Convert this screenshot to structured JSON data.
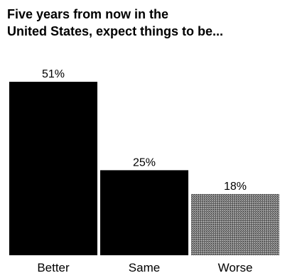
{
  "chart_data": {
    "type": "bar",
    "title_lines": [
      "Five years from now in the",
      "United States, expect things to be..."
    ],
    "categories": [
      "Better",
      "Same",
      "Worse"
    ],
    "values": [
      51,
      25,
      18
    ],
    "value_labels": [
      "51%",
      "25%",
      "18%"
    ],
    "unit": "%",
    "ylim": [
      0,
      51
    ],
    "grid": false,
    "legend": "none",
    "bar_colors": [
      "#000000",
      "#000000",
      "#6e6e6e"
    ],
    "bar_patterns": [
      "solid",
      "solid",
      "dotted-gray"
    ]
  }
}
